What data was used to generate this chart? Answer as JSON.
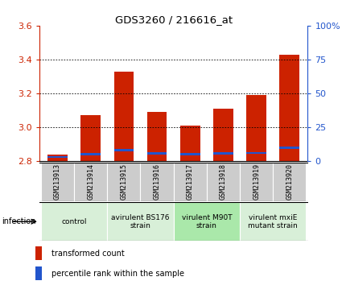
{
  "title": "GDS3260 / 216616_at",
  "samples": [
    "GSM213913",
    "GSM213914",
    "GSM213915",
    "GSM213916",
    "GSM213917",
    "GSM213918",
    "GSM213919",
    "GSM213920"
  ],
  "transformed_counts": [
    2.84,
    3.07,
    3.33,
    3.09,
    3.01,
    3.11,
    3.19,
    3.43
  ],
  "percentile_ranks": [
    3.0,
    5.0,
    8.0,
    5.5,
    5.0,
    5.5,
    6.0,
    10.0
  ],
  "bar_bottom": 2.8,
  "ylim_left": [
    2.8,
    3.6
  ],
  "ylim_right": [
    0,
    100
  ],
  "yticks_left": [
    2.8,
    3.0,
    3.2,
    3.4,
    3.6
  ],
  "yticks_right": [
    0,
    25,
    50,
    75,
    100
  ],
  "yticklabels_right": [
    "0",
    "25",
    "50",
    "75",
    "100%"
  ],
  "red_color": "#cc2200",
  "blue_color": "#2255cc",
  "groups": [
    {
      "label": "control",
      "indices": [
        0,
        1
      ],
      "color": "#d8efd8"
    },
    {
      "label": "avirulent BS176\nstrain",
      "indices": [
        2,
        3
      ],
      "color": "#d8efd8"
    },
    {
      "label": "virulent M90T\nstrain",
      "indices": [
        4,
        5
      ],
      "color": "#aae8aa"
    },
    {
      "label": "virulent mxiE\nmutant strain",
      "indices": [
        6,
        7
      ],
      "color": "#d8efd8"
    }
  ],
  "infection_label": "infection",
  "legend_red": "transformed count",
  "legend_blue": "percentile rank within the sample",
  "bar_width": 0.6,
  "blue_bar_height": 0.013
}
